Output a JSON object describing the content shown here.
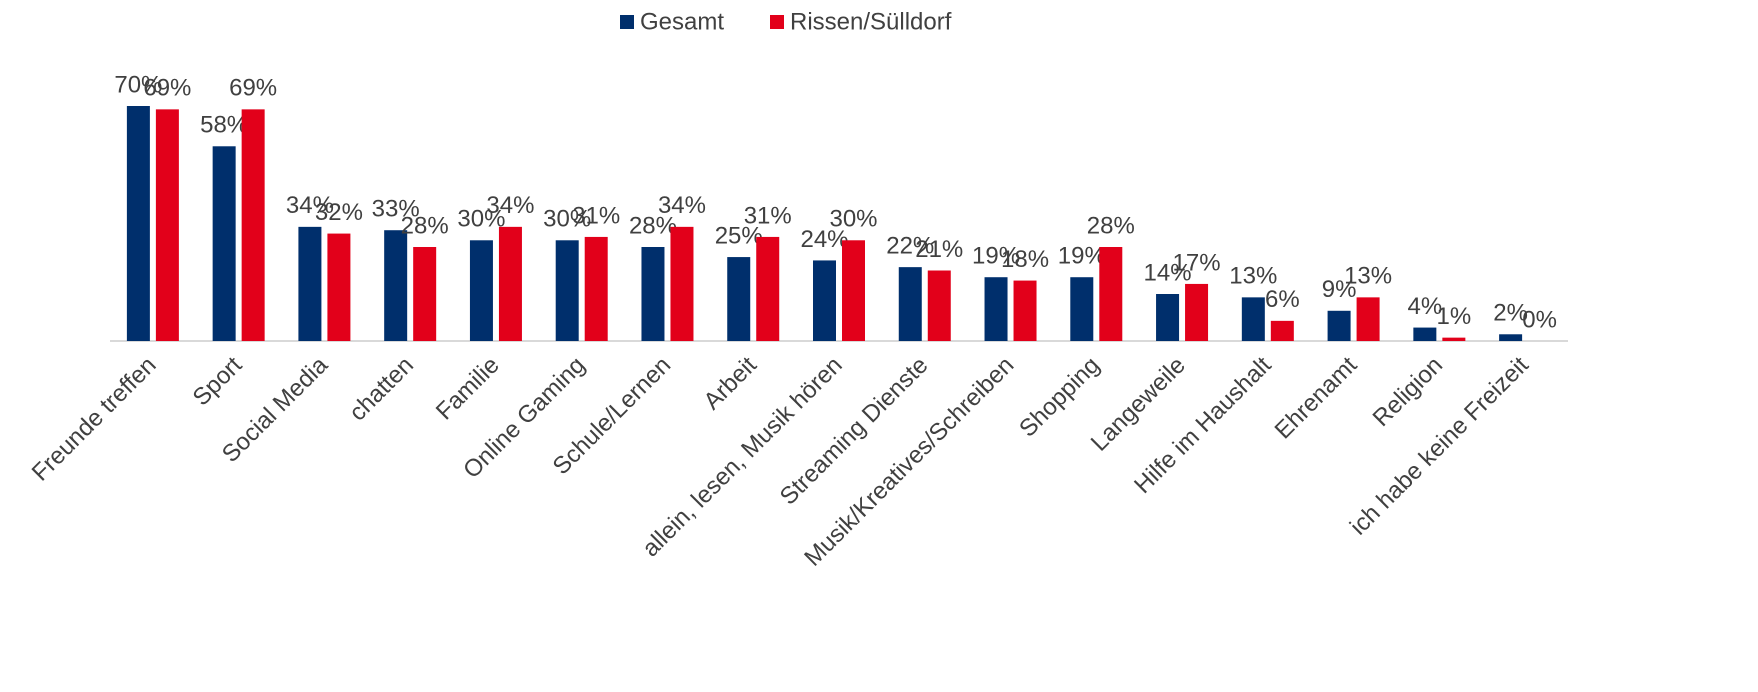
{
  "chart_data": {
    "type": "bar",
    "categories": [
      "Freunde treffen",
      "Sport",
      "Social Media",
      "chatten",
      "Familie",
      "Online Gaming",
      "Schule/Lernen",
      "Arbeit",
      "allein, lesen, Musik hören",
      "Streaming Dienste",
      "Musik/Kreatives/Schreiben",
      "Shopping",
      "Langeweile",
      "Hilfe im Haushalt",
      "Ehrenamt",
      "Religion",
      "ich habe keine Freizeit"
    ],
    "series": [
      {
        "name": "Gesamt",
        "color": "#002f6c",
        "values": [
          70,
          58,
          34,
          33,
          30,
          30,
          28,
          25,
          24,
          22,
          19,
          19,
          14,
          13,
          9,
          4,
          2
        ],
        "value_labels": [
          "70%",
          "58%",
          "34%",
          "33%",
          "30%",
          "30%",
          "28%",
          "25%",
          "24%",
          "22%",
          "19%",
          "19%",
          "14%",
          "13%",
          "9%",
          "4%",
          "2%"
        ]
      },
      {
        "name": "Rissen/Sülldorf",
        "color": "#e2001a",
        "values": [
          69,
          69,
          32,
          28,
          34,
          31,
          34,
          31,
          30,
          21,
          18,
          28,
          17,
          6,
          13,
          1,
          0
        ],
        "value_labels": [
          "69%",
          "69%",
          "32%",
          "28%",
          "34%",
          "31%",
          "34%",
          "31%",
          "30%",
          "21%",
          "18%",
          "28%",
          "17%",
          "6%",
          "13%",
          "1%",
          "0%"
        ]
      }
    ],
    "legend": "top"
  }
}
